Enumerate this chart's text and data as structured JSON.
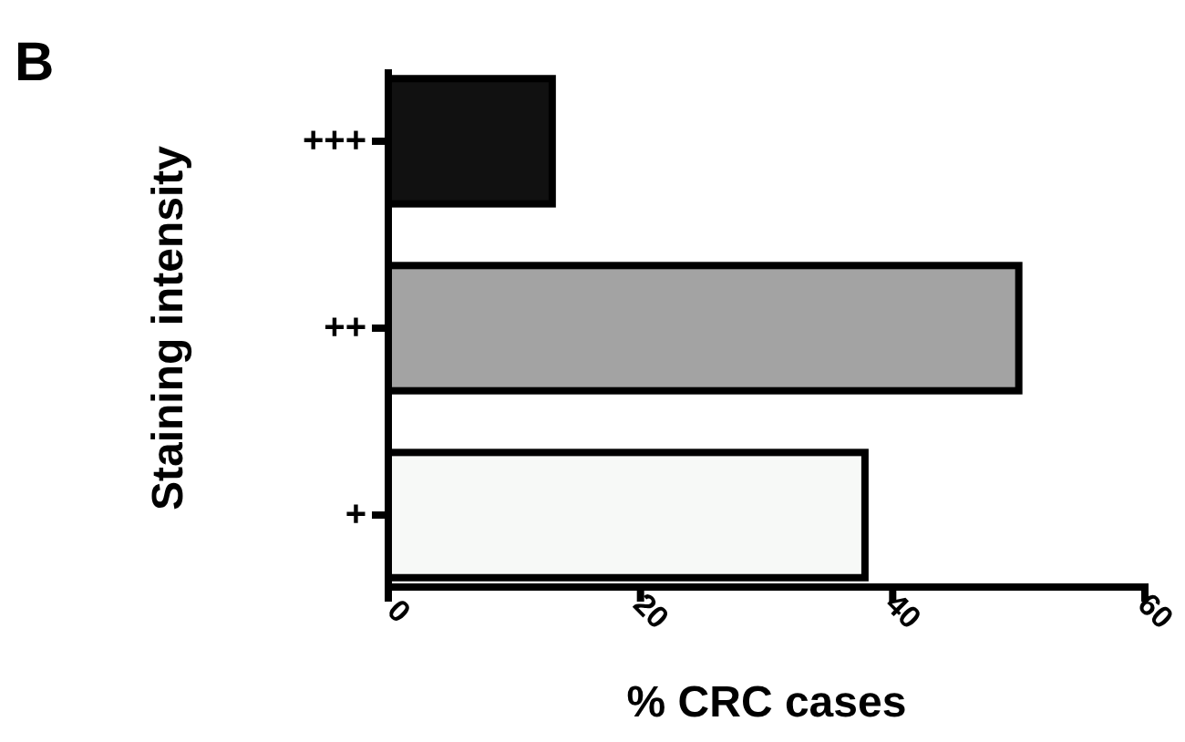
{
  "chart_data": {
    "type": "bar",
    "orientation": "horizontal",
    "xlabel": "% CRC cases",
    "ylabel": "Staining intensity",
    "annotations": [
      "B"
    ],
    "categories": [
      "+++",
      "++",
      "+"
    ],
    "values": [
      13,
      50,
      37.8
    ],
    "colors": [
      "#111111",
      "#a3a3a3",
      "#f7f9f7"
    ],
    "xlim": [
      0,
      60
    ],
    "xticks": [
      0,
      20,
      40,
      60
    ],
    "grid": false
  }
}
